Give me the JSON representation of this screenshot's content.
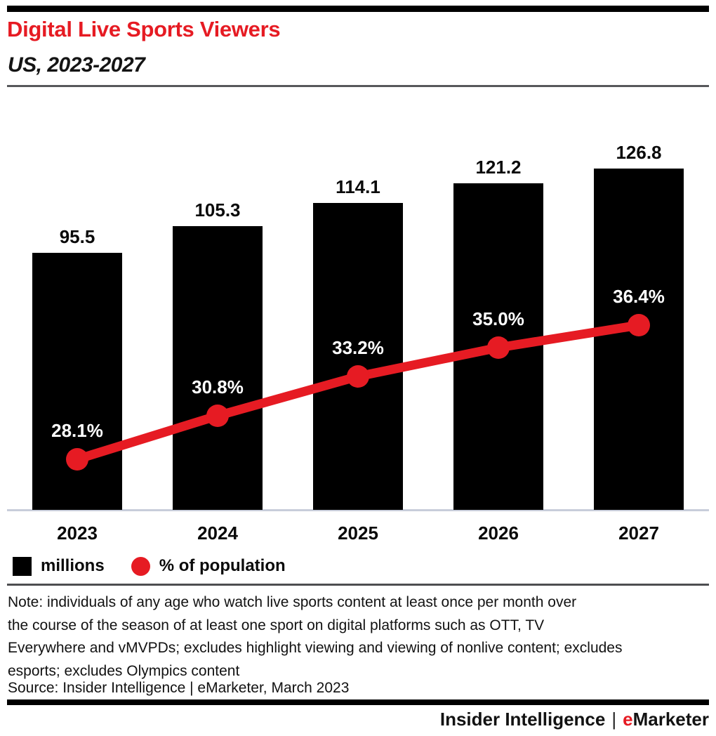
{
  "header": {
    "title": "Digital Live Sports Viewers",
    "subtitle": "US, 2023-2027"
  },
  "chart_data": {
    "type": "bar",
    "title": "Digital Live Sports Viewers",
    "subtitle": "US, 2023-2027",
    "categories": [
      "2023",
      "2024",
      "2025",
      "2026",
      "2027"
    ],
    "series": [
      {
        "name": "millions",
        "type": "bar",
        "values": [
          95.5,
          105.3,
          114.1,
          121.2,
          126.8
        ],
        "color": "#000000"
      },
      {
        "name": "% of population",
        "type": "line",
        "values": [
          28.1,
          30.8,
          33.2,
          35.0,
          36.4
        ],
        "color": "#e61b23"
      }
    ],
    "bar_labels": [
      "95.5",
      "105.3",
      "114.1",
      "121.2",
      "126.8"
    ],
    "line_labels": [
      "28.1%",
      "30.8%",
      "33.2%",
      "35.0%",
      "36.4%"
    ],
    "legend": [
      {
        "label": "millions",
        "swatch": "square",
        "color": "#000000"
      },
      {
        "label": "% of population",
        "swatch": "circle",
        "color": "#e61b23"
      }
    ],
    "legend_position": "bottom",
    "grid": "off",
    "bar_axis_range": [
      0,
      126.8
    ],
    "line_axis_range_pct": [
      28.1,
      36.4
    ]
  },
  "note_lines": {
    "0": "Note: individuals of any age who watch live sports content at least once per month over",
    "1": "the course of the season of at least one sport on digital platforms such as OTT, TV",
    "2": "Everywhere and vMVPDs; excludes highlight viewing and viewing of nonlive content; excludes",
    "3": "esports; excludes Olympics content"
  },
  "source": "Source: Insider Intelligence | eMarketer, March 2023",
  "footer": {
    "brand_left": "Insider Intelligence",
    "separator": "|",
    "brand_e": "e",
    "brand_rest": "Marketer"
  },
  "colors": {
    "brand_red": "#e61b23",
    "bar_black": "#000000",
    "axis_line": "#c8cdda",
    "rule_gray": "#57585b",
    "text_black": "#111111"
  }
}
